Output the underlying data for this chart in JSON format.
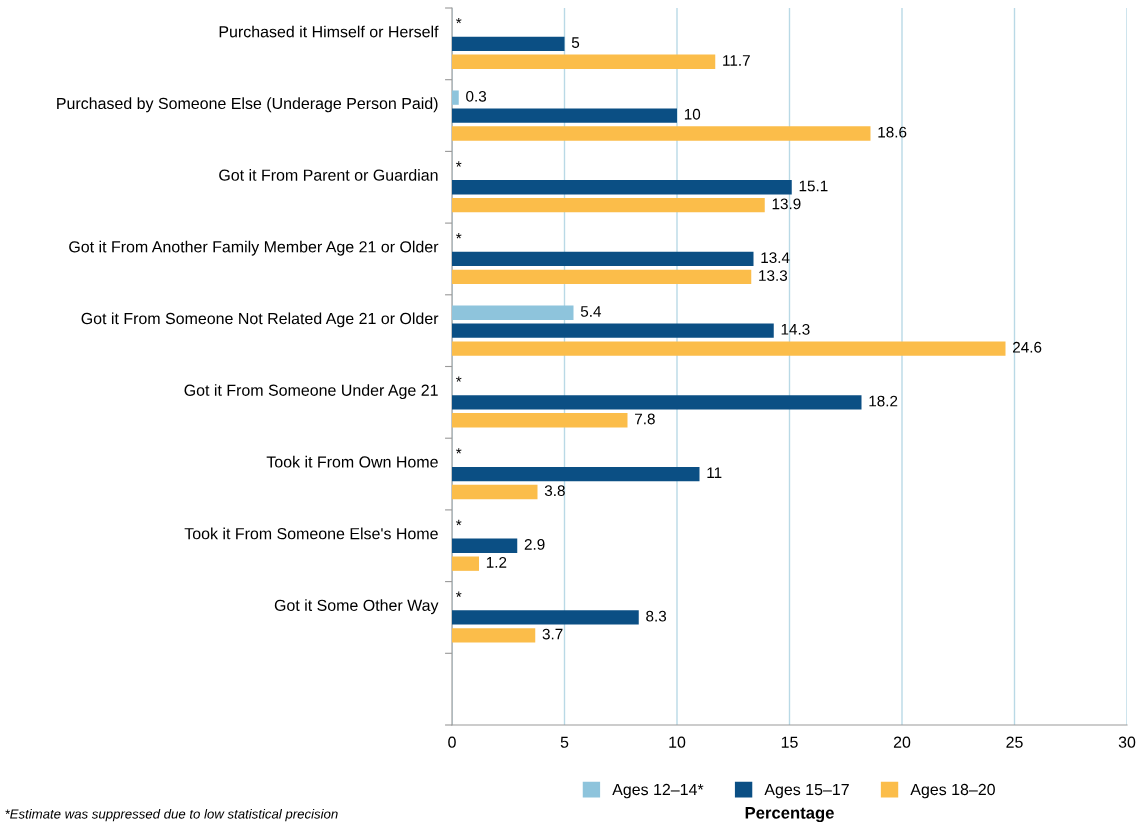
{
  "chart_data": {
    "type": "bar",
    "orientation": "horizontal",
    "xlabel": "Percentage",
    "categories": [
      "Purchased it Himself or Herself",
      "Purchased by Someone Else (Underage Person Paid)",
      "Got it From Parent or Guardian",
      "Got it From Another Family Member Age 21 or Older",
      "Got it From Someone Not Related Age 21 or Older",
      "Got it From Someone Under Age 21",
      "Took it From Own Home",
      "Took it From Someone Else's Home",
      "Got it Some Other Way",
      null
    ],
    "series": [
      {
        "name": "Ages 12–14*",
        "color": "#8ec4dc",
        "values": [
          null,
          0.3,
          null,
          null,
          5.4,
          null,
          null,
          null,
          null,
          null
        ],
        "value_labels": [
          "*",
          "0.3",
          "*",
          "*",
          "5.4",
          "*",
          "*",
          "*",
          "*",
          null
        ]
      },
      {
        "name": "Ages 15–17",
        "color": "#0b4f84",
        "values": [
          5,
          10,
          15.1,
          13.4,
          14.3,
          18.2,
          11,
          2.9,
          8.3,
          null
        ],
        "value_labels": [
          "5",
          "10",
          "15.1",
          "13.4",
          "14.3",
          "18.2",
          "11",
          "2.9",
          "8.3",
          null
        ]
      },
      {
        "name": "Ages 18–20",
        "color": "#fbbd4a",
        "values": [
          11.7,
          18.6,
          13.9,
          13.3,
          24.6,
          7.8,
          3.8,
          1.2,
          3.7,
          null
        ],
        "value_labels": [
          "11.7",
          "18.6",
          "13.9",
          "13.3",
          "24.6",
          "7.8",
          "3.8",
          "1.2",
          "3.7",
          null
        ]
      }
    ],
    "xlim": [
      0,
      30
    ],
    "xticks": [
      0,
      5,
      10,
      15,
      20,
      25,
      30
    ],
    "grid": "x",
    "legend": "bottom",
    "annotations": [
      "*Estimate was suppressed due to low statistical precision"
    ]
  }
}
